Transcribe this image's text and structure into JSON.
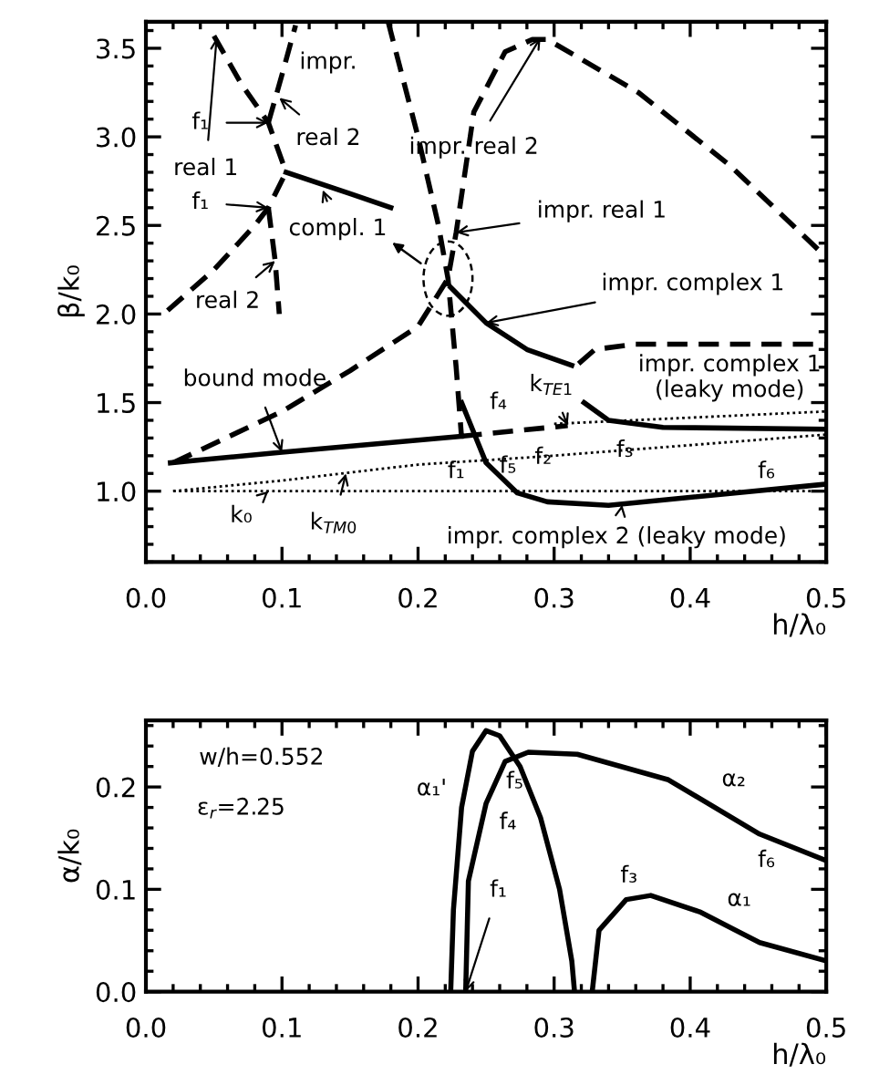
{
  "chart_data": [
    {
      "type": "line",
      "ylabel": "β/k₀",
      "xlabel": "h/λ₀",
      "xlim": [
        0,
        0.5
      ],
      "ylim": [
        0.6,
        3.65
      ],
      "xticks": [
        {
          "value": 0,
          "label": "0.0"
        },
        0.1,
        0.2,
        0.3,
        0.4,
        0.5
      ],
      "yticks": [
        {
          "value": 1,
          "label": "1.0"
        },
        1.5,
        {
          "value": 2,
          "label": "2.0"
        },
        2.5,
        {
          "value": 3,
          "label": "3.0"
        },
        3.5
      ],
      "series": [
        {
          "color": "#000000",
          "line_style": "dashed",
          "x": [
            0.05,
            0.07,
            0.09,
            0.103
          ],
          "values": [
            3.57,
            3.3,
            3.08,
            2.8
          ]
        },
        {
          "color": "#000000",
          "line_style": "dashed",
          "x": [
            0.016,
            0.05,
            0.08,
            0.09,
            0.103
          ],
          "values": [
            2.02,
            2.25,
            2.5,
            2.6,
            2.8
          ]
        },
        {
          "color": "#000000",
          "line_style": "dashed",
          "x": [
            0.09,
            0.1,
            0.11
          ],
          "values": [
            3.08,
            3.35,
            3.63
          ]
        },
        {
          "color": "#000000",
          "line_style": "dashed",
          "x": [
            0.09,
            0.095,
            0.098
          ],
          "values": [
            2.6,
            2.3,
            2.0
          ]
        },
        {
          "color": "#000000",
          "line_style": "solid",
          "x": [
            0.103,
            0.15,
            0.18
          ],
          "values": [
            2.8,
            2.68,
            2.6
          ]
        },
        {
          "color": "#000000",
          "line_style": "dashed",
          "x": [
            0.178,
            0.2,
            0.215,
            0.222,
            0.228,
            0.232
          ],
          "values": [
            3.65,
            3.0,
            2.5,
            2.2,
            1.7,
            1.3
          ]
        },
        {
          "color": "#000000",
          "line_style": "dashed",
          "x": [
            0.02,
            0.1,
            0.15,
            0.2,
            0.222,
            0.228,
            0.241,
            0.264,
            0.284,
            0.295,
            0.362,
            0.429,
            0.5
          ],
          "values": [
            1.16,
            1.45,
            1.68,
            1.93,
            2.2,
            2.46,
            3.14,
            3.48,
            3.55,
            3.55,
            3.25,
            2.84,
            2.32
          ]
        },
        {
          "color": "#000000",
          "line_style": "solid",
          "x": [
            0.224,
            0.25,
            0.28,
            0.313
          ],
          "values": [
            2.15,
            1.95,
            1.8,
            1.71
          ]
        },
        {
          "color": "#000000",
          "line_style": "dashed",
          "x": [
            0.318,
            0.33,
            0.36,
            0.5
          ],
          "values": [
            1.72,
            1.8,
            1.83,
            1.83
          ]
        },
        {
          "color": "#000000",
          "line_style": "solid",
          "x": [
            0.018,
            0.1,
            0.232
          ],
          "values": [
            1.16,
            1.22,
            1.31
          ]
        },
        {
          "color": "#000000",
          "line_style": "dashed",
          "x": [
            0.232,
            0.31
          ],
          "values": [
            1.31,
            1.37
          ]
        },
        {
          "color": "#000000",
          "line_style": "solid",
          "x": [
            0.322,
            0.34,
            0.38,
            0.5
          ],
          "values": [
            1.5,
            1.4,
            1.36,
            1.35
          ]
        },
        {
          "color": "#000000",
          "line_style": "dotted",
          "x": [
            0.3,
            0.5
          ],
          "values": [
            1.38,
            1.45
          ]
        },
        {
          "color": "#000000",
          "line_style": "solid",
          "x": [
            0.232,
            0.25,
            0.273,
            0.295,
            0.34,
            0.5
          ],
          "values": [
            1.5,
            1.16,
            0.99,
            0.94,
            0.92,
            1.04
          ]
        },
        {
          "color": "#000000",
          "line_style": "dotted",
          "x": [
            0.02,
            0.5
          ],
          "values": [
            1.0,
            1.0
          ]
        },
        {
          "color": "#000000",
          "line_style": "dotted",
          "x": [
            0.02,
            0.1,
            0.2,
            0.3,
            0.5
          ],
          "values": [
            1.0,
            1.06,
            1.15,
            1.2,
            1.32
          ]
        }
      ],
      "annotations": [
        "impr.",
        {
          "text": "real 2",
          "x": 0.098,
          "y": 3.22
        },
        {
          "text": "f₁",
          "x": 0.09,
          "y": 3.08
        },
        {
          "text": "real 1",
          "x": 0.052,
          "y": 3.56
        },
        {
          "text": "f₁",
          "x": 0.09,
          "y": 2.6
        },
        {
          "text": "compl. 1",
          "x": 0.13,
          "y": 2.7
        },
        {
          "text": "real 2",
          "x": 0.095,
          "y": 2.3
        },
        {
          "text": "impr. real 2",
          "x": 0.29,
          "y": 3.56
        },
        {
          "text": "impr. real 1",
          "x": 0.228,
          "y": 2.46
        },
        {
          "text": "impr. complex 1",
          "x": 0.25,
          "y": 1.95
        },
        "impr. complex 1\n(leaky mode)",
        {
          "text": "k$_{TE1}$",
          "x": 0.31,
          "y": 1.37
        },
        {
          "text": "bound mode",
          "x": 0.1,
          "y": 1.22
        },
        "f₄",
        "f₁",
        "f₅",
        "f₂",
        "f₃",
        "f₆",
        {
          "text": "k₀",
          "x": 0.09,
          "y": 1.0
        },
        {
          "text": "k$_{TM0}$",
          "x": 0.147,
          "y": 1.1
        },
        {
          "text": "impr. complex 2 (leaky mode)",
          "x": 0.35,
          "y": 0.923
        }
      ]
    },
    {
      "type": "line",
      "ylabel": "α/k₀",
      "xlabel": "h/λ₀",
      "xlim": [
        0,
        0.5
      ],
      "ylim": [
        0,
        0.265
      ],
      "xticks": [
        {
          "value": 0,
          "label": "0.0"
        },
        0.1,
        0.2,
        0.3,
        0.4,
        0.5
      ],
      "yticks": [
        {
          "value": 0,
          "label": "0.0"
        },
        0.1,
        0.2
      ],
      "series": [
        {
          "color": "#000000",
          "line_style": "solid",
          "x": [
            0.224,
            0.226,
            0.232,
            0.24,
            0.25,
            0.26,
            0.275,
            0.29,
            0.304,
            0.313,
            0.315
          ],
          "values": [
            0,
            0.08,
            0.18,
            0.235,
            0.255,
            0.25,
            0.22,
            0.17,
            0.1,
            0.03,
            0
          ]
        },
        {
          "color": "#000000",
          "line_style": "solid",
          "x": [
            0.235,
            0.237,
            0.25,
            0.264,
            0.281,
            0.317,
            0.384,
            0.451,
            0.5
          ],
          "values": [
            0,
            0.108,
            0.184,
            0.225,
            0.234,
            0.232,
            0.207,
            0.154,
            0.128
          ]
        },
        {
          "color": "#000000",
          "line_style": "solid",
          "x": [
            0.328,
            0.333,
            0.353,
            0.371,
            0.407,
            0.451,
            0.5
          ],
          "values": [
            0,
            0.06,
            0.09,
            0.094,
            0.078,
            0.048,
            0.03
          ]
        }
      ],
      "annotations": [
        "w/h=0.552",
        "ε$_{r}$=2.25",
        "α₁'",
        "f₄",
        "f₅",
        "α₂",
        "f₃",
        "f₆",
        "α₁",
        {
          "text": "f₁",
          "x": 0.235,
          "y": 0.0
        }
      ]
    }
  ]
}
